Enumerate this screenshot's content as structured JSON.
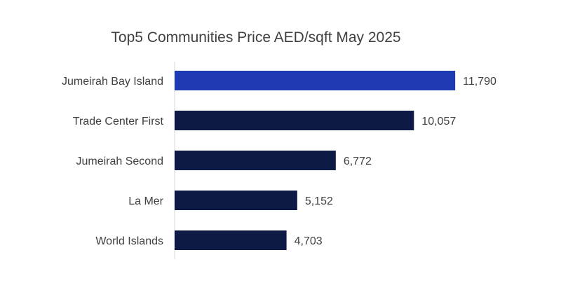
{
  "chart_data": {
    "type": "bar",
    "orientation": "horizontal",
    "title": "Top5 Communities Price AED/sqft May 2025",
    "xlabel": "",
    "ylabel": "",
    "xlim": [
      0,
      16000
    ],
    "grid": false,
    "legend": "none",
    "categories": [
      "Jumeirah Bay Island",
      "Trade Center First",
      "Jumeirah Second",
      "La Mer",
      "World Islands"
    ],
    "values": [
      11790,
      10057,
      6772,
      5152,
      4703
    ],
    "value_labels": [
      "11,790",
      "10,057",
      "6,772",
      "5,152",
      "4,703"
    ],
    "bar_colors": [
      "#1f3bb3",
      "#0d1a45",
      "#0d1a45",
      "#0d1a45",
      "#0d1a45"
    ],
    "axis_color": "#d9d9d9",
    "text_color": "#404040"
  }
}
